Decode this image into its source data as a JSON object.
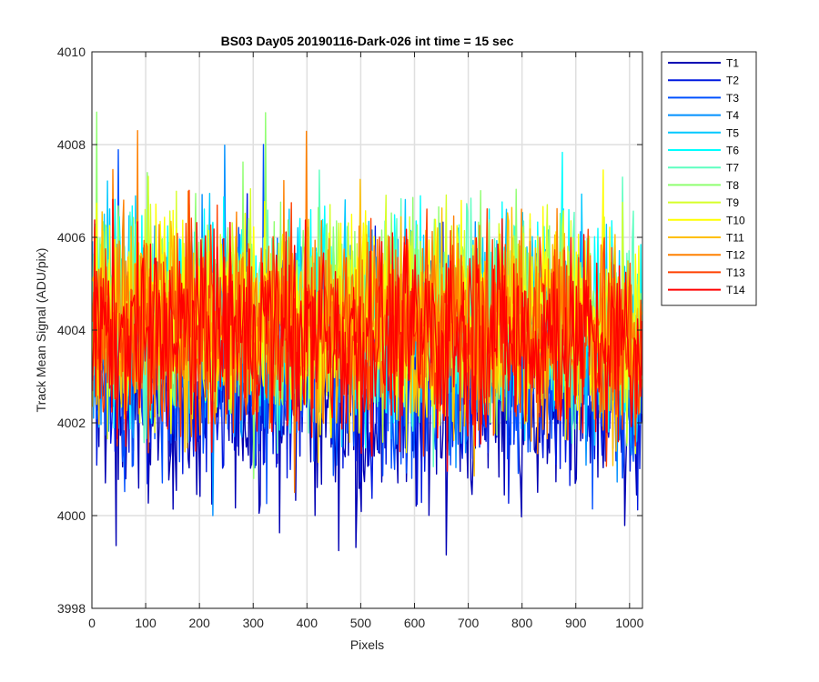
{
  "chart_data": {
    "type": "line",
    "title": "BS03 Day05 20190116-Dark-026 int time = 15 sec",
    "xlabel": "Pixels",
    "ylabel": "Track Mean Signal (ADU/pix)",
    "xlim": [
      0,
      1024
    ],
    "ylim": [
      3998,
      4010
    ],
    "xticks": [
      0,
      100,
      200,
      300,
      400,
      500,
      600,
      700,
      800,
      900,
      1000
    ],
    "yticks": [
      3998,
      4000,
      4002,
      4004,
      4006,
      4008,
      4010
    ],
    "grid": true,
    "legend_position": "outside-top-right",
    "series": [
      {
        "name": "T1",
        "color": "#0000b3",
        "mean": 4002.5,
        "range": [
          3998.6,
          4008.1
        ]
      },
      {
        "name": "T2",
        "color": "#0019e0",
        "mean": 4003.0,
        "range": [
          3999.0,
          4007.8
        ]
      },
      {
        "name": "T3",
        "color": "#0050ff",
        "mean": 4003.3,
        "range": [
          3999.5,
          4008.0
        ]
      },
      {
        "name": "T4",
        "color": "#0090ff",
        "mean": 4003.8,
        "range": [
          4000.0,
          4008.5
        ]
      },
      {
        "name": "T5",
        "color": "#00c8ff",
        "mean": 4004.2,
        "range": [
          4000.5,
          4009.2
        ]
      },
      {
        "name": "T6",
        "color": "#00ffff",
        "mean": 4004.4,
        "range": [
          4000.5,
          4009.0
        ]
      },
      {
        "name": "T7",
        "color": "#5effc0",
        "mean": 4004.4,
        "range": [
          4000.5,
          4008.9
        ]
      },
      {
        "name": "T8",
        "color": "#8fff70",
        "mean": 4004.5,
        "range": [
          4000.8,
          4008.7
        ]
      },
      {
        "name": "T9",
        "color": "#d6ff29",
        "mean": 4004.3,
        "range": [
          4000.8,
          4008.6
        ]
      },
      {
        "name": "T10",
        "color": "#ffff00",
        "mean": 4004.3,
        "range": [
          4000.8,
          4008.5
        ]
      },
      {
        "name": "T11",
        "color": "#ffbf00",
        "mean": 4004.2,
        "range": [
          4000.5,
          4009.0
        ]
      },
      {
        "name": "T12",
        "color": "#ff8000",
        "mean": 4004.1,
        "range": [
          4000.5,
          4008.3
        ]
      },
      {
        "name": "T13",
        "color": "#ff4000",
        "mean": 4004.0,
        "range": [
          4000.0,
          4008.4
        ]
      },
      {
        "name": "T14",
        "color": "#ff0000",
        "mean": 4003.9,
        "range": [
          3999.9,
          4008.3
        ]
      }
    ]
  }
}
